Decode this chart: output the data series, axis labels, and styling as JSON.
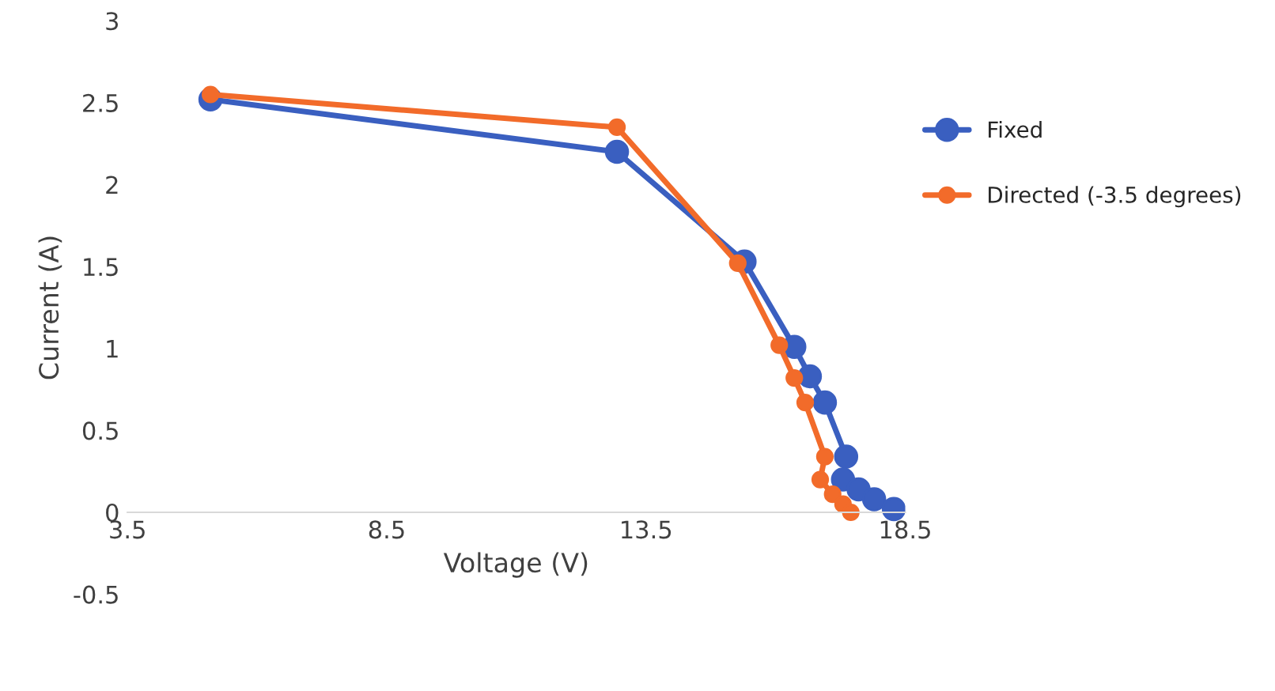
{
  "chart_data": {
    "type": "line",
    "xlabel": "Voltage (V)",
    "ylabel": "Current (A)",
    "xlim": [
      3.5,
      18.5
    ],
    "xticks": [
      3.5,
      8.5,
      13.5,
      18.5
    ],
    "ylim": [
      -0.5,
      3
    ],
    "yticks": [
      -0.5,
      0,
      0.5,
      1,
      1.5,
      2,
      2.5,
      3
    ],
    "grid": false,
    "legend": "right",
    "marker": "circle",
    "line_style": "solid",
    "series": [
      {
        "name": "Fixed",
        "color": "#3a5fc0",
        "x": [
          5.1,
          12.94,
          15.4,
          16.36,
          16.66,
          16.95,
          17.36,
          17.3,
          17.6,
          17.9,
          18.28
        ],
        "values": [
          2.52,
          2.2,
          1.53,
          1.01,
          0.83,
          0.67,
          0.34,
          0.2,
          0.14,
          0.08,
          0.02
        ]
      },
      {
        "name": "Directed (-3.5 degrees)",
        "color": "#f26b2a",
        "x": [
          5.1,
          12.94,
          15.27,
          16.07,
          16.36,
          16.57,
          16.95,
          16.86,
          17.1,
          17.3,
          17.45
        ],
        "values": [
          2.55,
          2.35,
          1.52,
          1.02,
          0.82,
          0.67,
          0.34,
          0.2,
          0.11,
          0.05,
          0.0
        ]
      }
    ]
  }
}
